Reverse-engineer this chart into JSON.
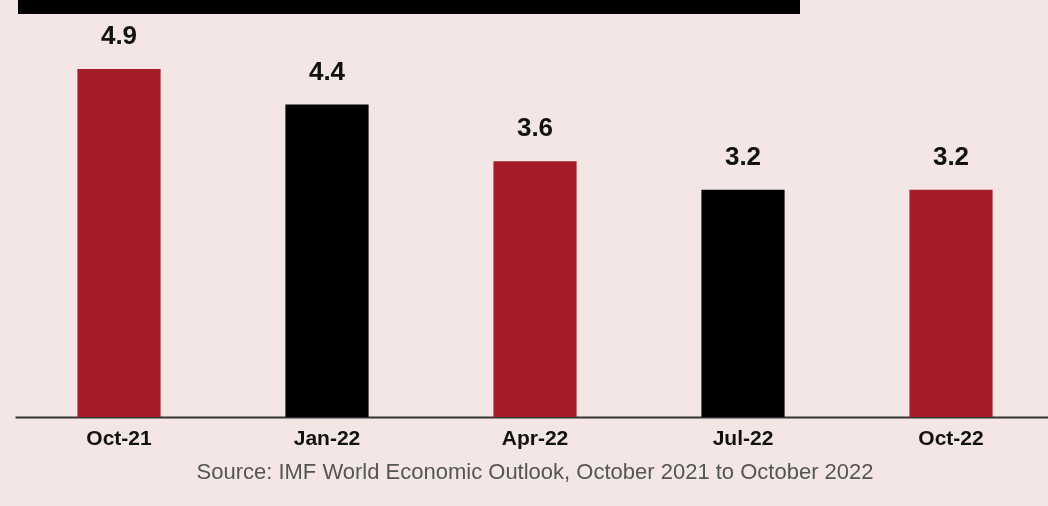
{
  "chart_data": {
    "type": "bar",
    "categories": [
      "Oct-21",
      "Jan-22",
      "Apr-22",
      "Jul-22",
      "Oct-22"
    ],
    "values": [
      4.9,
      4.4,
      3.6,
      3.2,
      3.2
    ],
    "colors": [
      "#a51e27",
      "#000000",
      "#a51e27",
      "#000000",
      "#a51e27"
    ],
    "data_labels": true,
    "annotations": [
      "Source: IMF World Economic Outlook, October 2021 to October 2022"
    ]
  }
}
